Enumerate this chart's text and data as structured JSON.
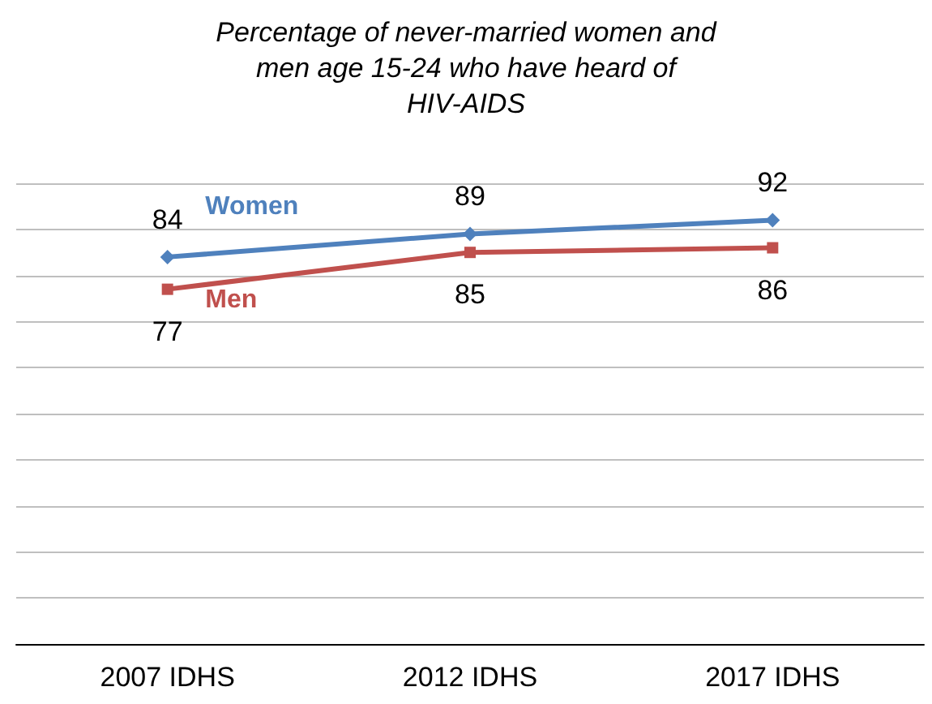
{
  "chart_data": {
    "type": "line",
    "title": "Percentage of never-married women and\nmen age 15-24 who have heard of\nHIV-AIDS",
    "categories": [
      "2007 IDHS",
      "2012 IDHS",
      "2017 IDHS"
    ],
    "series": [
      {
        "name": "Women",
        "color": "#4f81bd",
        "values": [
          84,
          89,
          92
        ],
        "marker": "diamond"
      },
      {
        "name": "Men",
        "color": "#c0504d",
        "values": [
          77,
          85,
          86
        ],
        "marker": "square"
      }
    ],
    "ylim": [
      0,
      100
    ],
    "yticks": [
      0,
      10,
      20,
      30,
      40,
      50,
      60,
      70,
      80,
      90,
      100
    ],
    "tick_labels": "x",
    "grid": "y",
    "legend": false,
    "data_labels": true
  }
}
